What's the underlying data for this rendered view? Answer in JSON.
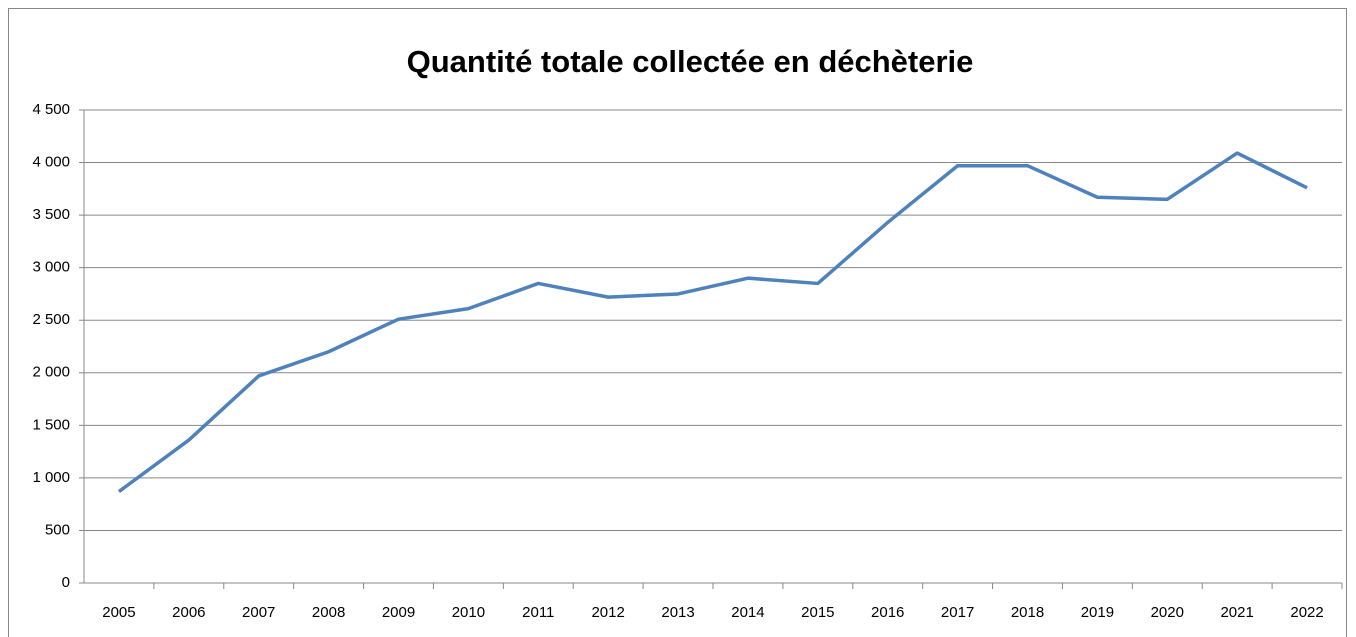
{
  "chart_data": {
    "type": "line",
    "title": "Quantité totale collectée en déchèterie",
    "categories": [
      "2005",
      "2006",
      "2007",
      "2008",
      "2009",
      "2010",
      "2011",
      "2012",
      "2013",
      "2014",
      "2015",
      "2016",
      "2017",
      "2018",
      "2019",
      "2020",
      "2021",
      "2022"
    ],
    "series": [
      {
        "name": "Quantité totale",
        "color": "#4f81bd",
        "values": [
          870,
          1360,
          1970,
          2200,
          2510,
          2610,
          2850,
          2720,
          2750,
          2900,
          2850,
          3430,
          3970,
          3970,
          3670,
          3650,
          4090,
          3760
        ]
      }
    ],
    "ylim": [
      0,
      4500
    ],
    "yticks": [
      0,
      500,
      {
        "value": 1000,
        "label": "1 000"
      },
      {
        "value": 1500,
        "label": "1 500"
      },
      {
        "value": 2000,
        "label": "2 000"
      },
      {
        "value": 2500,
        "label": "2 500"
      },
      {
        "value": 3000,
        "label": "3 000"
      },
      {
        "value": 3500,
        "label": "3 500"
      },
      {
        "value": 4000,
        "label": "4 000"
      },
      {
        "value": 4500,
        "label": "4 500"
      }
    ],
    "grid": true
  }
}
